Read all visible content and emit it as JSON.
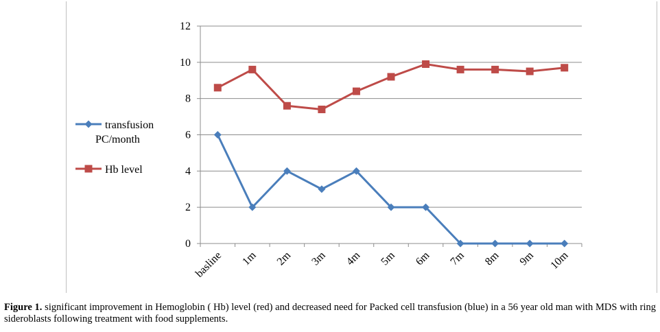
{
  "chart_data": {
    "type": "line",
    "title": "",
    "xlabel": "",
    "ylabel": "",
    "ylim": [
      0,
      12
    ],
    "yticks": [
      0,
      2,
      4,
      6,
      8,
      10,
      12
    ],
    "grid": true,
    "legend_position": "left",
    "categories": [
      "basline",
      "1m",
      "2m",
      "3m",
      "4m",
      "5m",
      "6m",
      "7m",
      "8m",
      "9m",
      "10m"
    ],
    "series": [
      {
        "name": "transfusion PC/month",
        "name_lines": [
          "transfusion",
          "PC/month"
        ],
        "color": "#4a7ebb",
        "marker": "diamond",
        "values": [
          6,
          2,
          4,
          3,
          4,
          2,
          2,
          0,
          0,
          0,
          0
        ]
      },
      {
        "name": "Hb level",
        "name_lines": [
          "Hb level"
        ],
        "color": "#be4b48",
        "marker": "square",
        "values": [
          8.6,
          9.6,
          7.6,
          7.4,
          8.4,
          9.2,
          9.9,
          9.6,
          9.6,
          9.5,
          9.7
        ]
      }
    ]
  },
  "caption": {
    "label": "Figure 1.",
    "text": " significant improvement in Hemoglobin ( Hb) level (red) and decreased need for Packed cell transfusion (blue) in a 56 year old man with MDS with ring sideroblasts following treatment with food supplements."
  }
}
